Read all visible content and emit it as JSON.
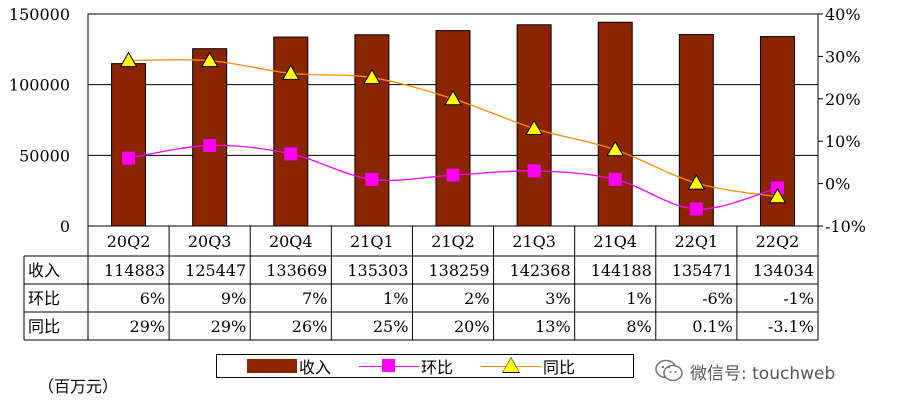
{
  "chart_data": {
    "type": "bar",
    "categories": [
      "20Q2",
      "20Q3",
      "20Q4",
      "21Q1",
      "21Q2",
      "21Q3",
      "21Q4",
      "22Q1",
      "22Q2"
    ],
    "series": [
      {
        "name": "收入",
        "axis": "left",
        "kind": "bar",
        "color": "#8b2500",
        "values": [
          114883,
          125447,
          133669,
          135303,
          138259,
          142368,
          144188,
          135471,
          134034
        ]
      },
      {
        "name": "环比",
        "axis": "right",
        "kind": "line",
        "marker": "square",
        "color": "#ff00ff",
        "values": [
          6,
          9,
          7,
          1,
          2,
          3,
          1,
          -6,
          -1
        ]
      },
      {
        "name": "同比",
        "axis": "right",
        "kind": "line",
        "marker": "triangle",
        "color": "#ff8c00",
        "marker_fill": "#ffff00",
        "values": [
          29,
          29,
          26,
          25,
          20,
          13,
          8,
          0.1,
          -3.1
        ]
      }
    ],
    "left_axis": {
      "ylim": [
        0,
        150000
      ],
      "ticks": [
        "0",
        "50000",
        "100000",
        "150000"
      ]
    },
    "right_axis": {
      "ylim": [
        -10,
        40
      ],
      "ticks": [
        "-10%",
        "0%",
        "10%",
        "20%",
        "30%",
        "40%"
      ]
    },
    "table": {
      "rows": [
        {
          "label": "收入",
          "cells": [
            "114883",
            "125447",
            "133669",
            "135303",
            "138259",
            "142368",
            "144188",
            "135471",
            "134034"
          ]
        },
        {
          "label": "环比",
          "cells": [
            "6%",
            "9%",
            "7%",
            "1%",
            "2%",
            "3%",
            "1%",
            "-6%",
            "-1%"
          ]
        },
        {
          "label": "同比",
          "cells": [
            "29%",
            "29%",
            "26%",
            "25%",
            "20%",
            "13%",
            "8%",
            "0.1%",
            "-3.1%"
          ]
        }
      ]
    },
    "legend": [
      "收入",
      "环比",
      "同比"
    ],
    "unit_note": "（百万元）",
    "grid": true
  },
  "watermark": "微信号: touchweb"
}
